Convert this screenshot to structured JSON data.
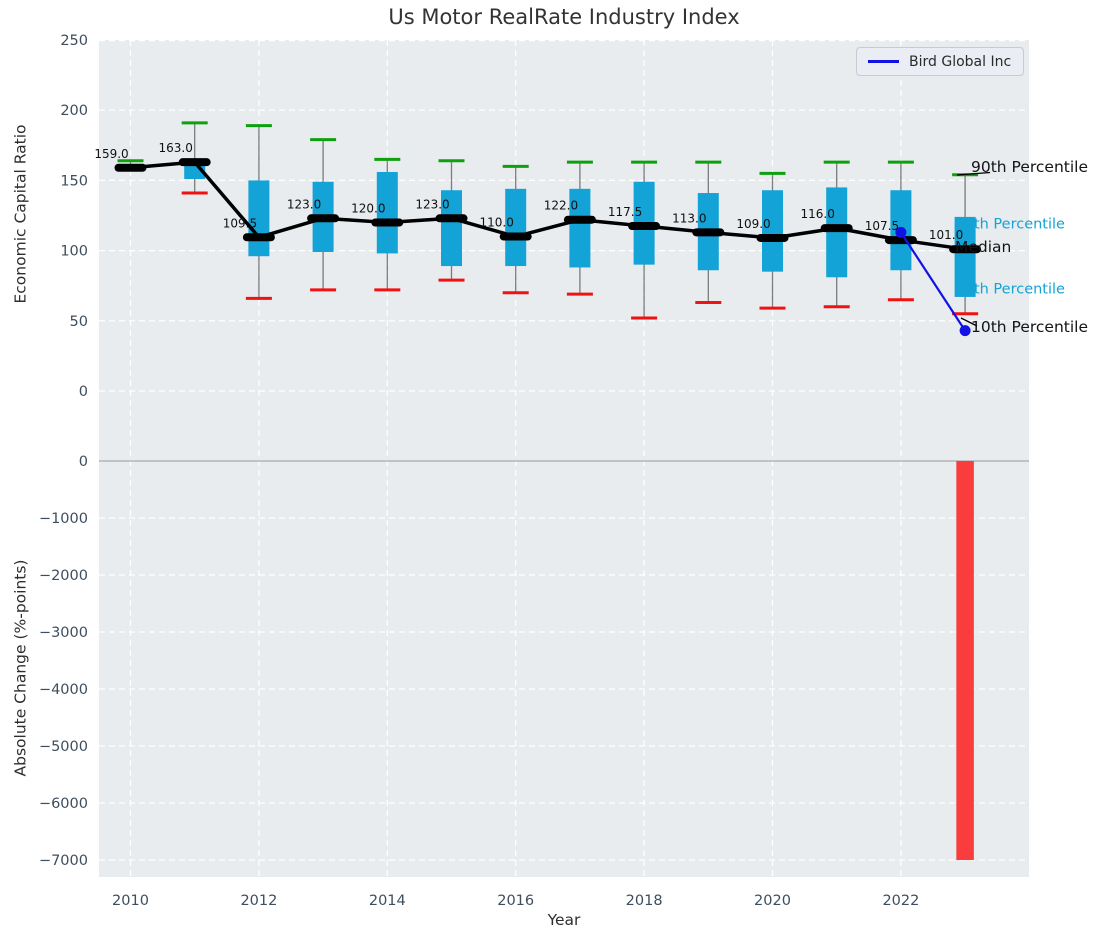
{
  "title": "Us Motor RealRate Industry Index",
  "legend": {
    "label": "Bird Global Inc"
  },
  "axes": {
    "xlabel": "Year",
    "xticks": [
      2010,
      2012,
      2014,
      2016,
      2018,
      2020,
      2022
    ],
    "top": {
      "ylabel": "Economic Capital Ratio",
      "yticks": [
        250,
        200,
        150,
        100,
        50,
        0
      ],
      "ylim": [
        -28,
        250
      ]
    },
    "bottom": {
      "ylabel": "Absolute Change (%-points)",
      "yticks": [
        0,
        -1000,
        -2000,
        -3000,
        -4000,
        -5000,
        -6000,
        -7000
      ],
      "ylim": [
        -7260,
        500
      ]
    }
  },
  "annotations": {
    "p90": "90th Percentile",
    "p75": "75th Percentile",
    "median": "Median",
    "p25": "25th Percentile",
    "p10": "10th Percentile"
  },
  "colors": {
    "plot_bg": "#e8ecee",
    "grid": "#ffffff",
    "box_fill": "#14a3d6",
    "whisker": "#555555",
    "cap_high_green": "#0fa00f",
    "cap_low_red": "#f21111",
    "median_black": "#000000",
    "company_blue": "#1212e6",
    "bar_red": "#f93c3c",
    "tick_label": "#3e4e5e",
    "zero_line": "#b0b4b8"
  },
  "chart_data": {
    "type": [
      "boxplot",
      "line",
      "bar"
    ],
    "years": [
      2010,
      2011,
      2012,
      2013,
      2014,
      2015,
      2016,
      2017,
      2018,
      2019,
      2020,
      2021,
      2022,
      2023
    ],
    "industry_percentiles": {
      "p10": [
        158,
        141,
        66,
        72,
        72,
        79,
        70,
        69,
        52,
        63,
        59,
        60,
        65,
        55
      ],
      "q1": [
        158,
        151,
        96,
        99,
        98,
        89,
        89,
        88,
        90,
        86,
        85,
        81,
        86,
        67
      ],
      "median": [
        159,
        163,
        109.5,
        123,
        120,
        123,
        110,
        122,
        117.5,
        113,
        109,
        116,
        107.5,
        101
      ],
      "q3": [
        160.5,
        161,
        150,
        149,
        156,
        143,
        144,
        144,
        149,
        141,
        143,
        145,
        143,
        124
      ],
      "p90": [
        164,
        191,
        189,
        179,
        165,
        164,
        160,
        163,
        163,
        163,
        155,
        163,
        163,
        154
      ]
    },
    "median_labels": [
      "159.0",
      "163.0",
      "109.5",
      "123.0",
      "120.0",
      "123.0",
      "110.0",
      "122.0",
      "117.5",
      "113.0",
      "109.0",
      "116.0",
      "107.5",
      "101.0"
    ],
    "company_series": {
      "name": "Bird Global Inc",
      "x": [
        2022,
        2023
      ],
      "y": [
        113,
        43
      ]
    },
    "bottom_bar": {
      "year": 2023,
      "value": -7000
    }
  }
}
